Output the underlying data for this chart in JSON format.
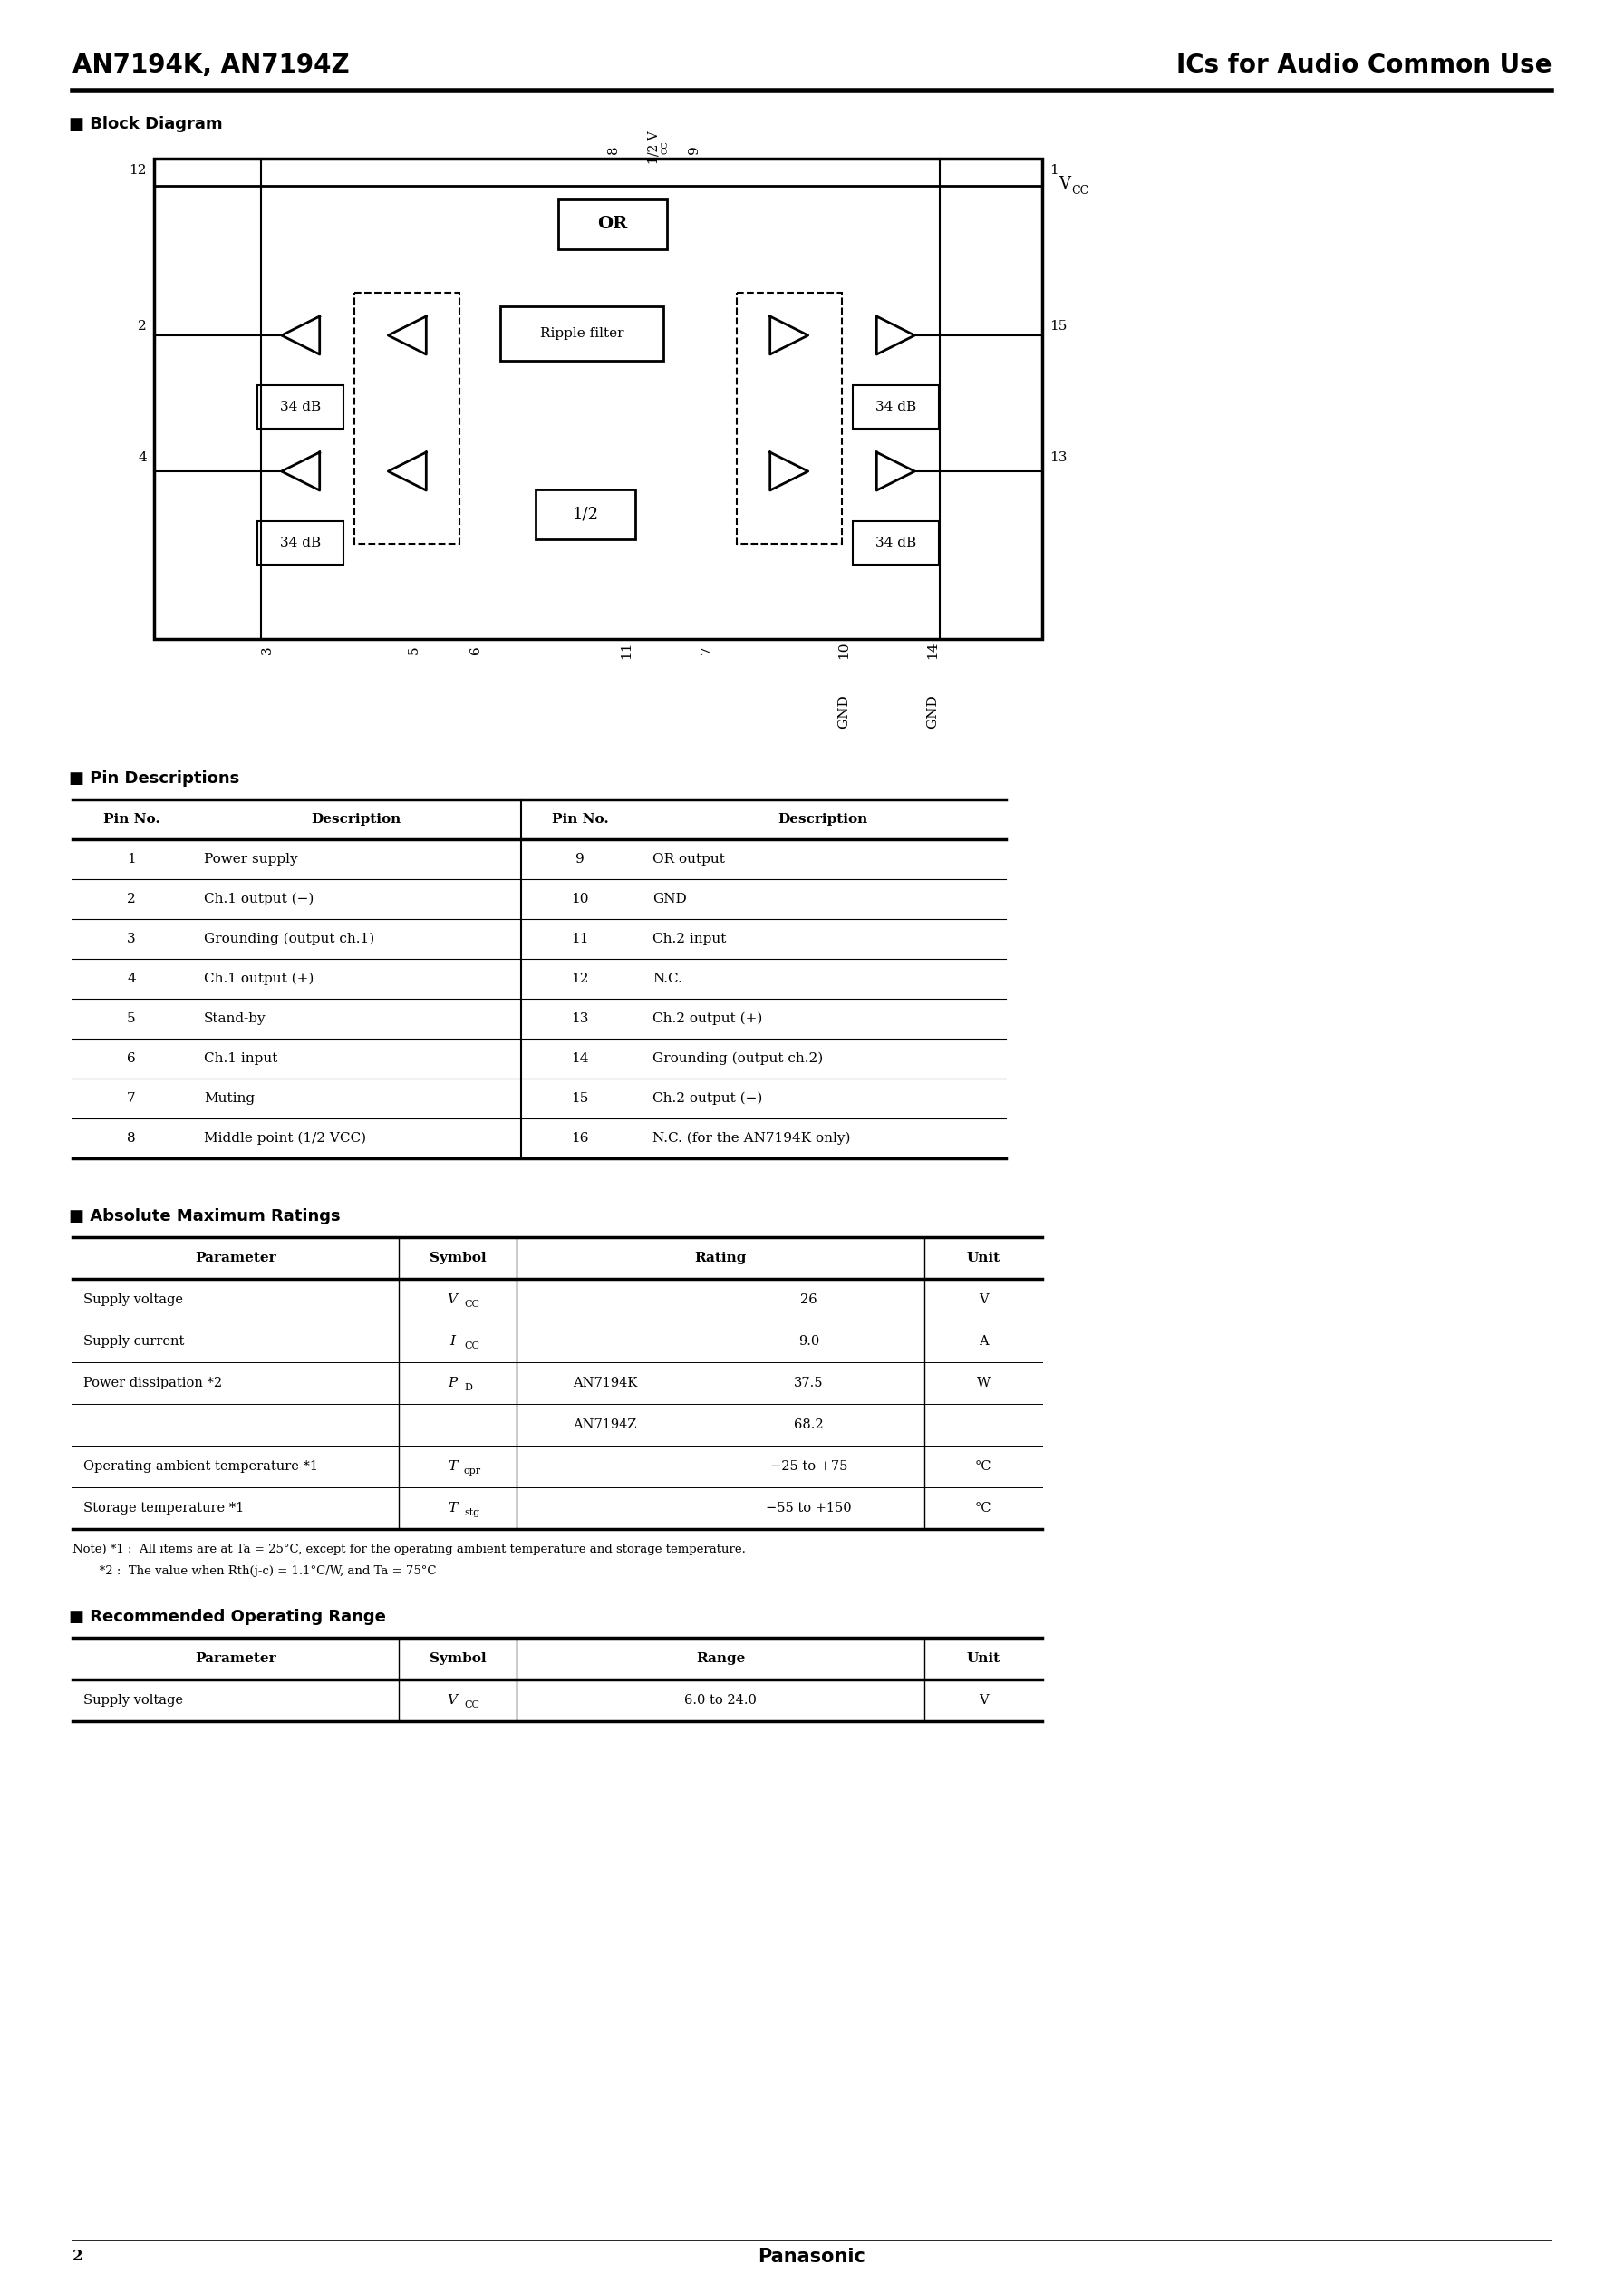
{
  "header_left": "AN7194K, AN7194Z",
  "header_right": "ICs for Audio Common Use",
  "section1": "Block Diagram",
  "section2": "Pin Descriptions",
  "section3": "Absolute Maximum Ratings",
  "section4": "Recommended Operating Range",
  "pin_table_headers": [
    "Pin No.",
    "Description",
    "Pin No.",
    "Description"
  ],
  "pin_data": [
    [
      "1",
      "Power supply",
      "9",
      "OR output"
    ],
    [
      "2",
      "Ch.1 output (−)",
      "10",
      "GND"
    ],
    [
      "3",
      "Grounding (output ch.1)",
      "11",
      "Ch.2 input"
    ],
    [
      "4",
      "Ch.1 output (+)",
      "12",
      "N.C."
    ],
    [
      "5",
      "Stand-by",
      "13",
      "Ch.2 output (+)"
    ],
    [
      "6",
      "Ch.1 input",
      "14",
      "Grounding (output ch.2)"
    ],
    [
      "7",
      "Muting",
      "15",
      "Ch.2 output (−)"
    ],
    [
      "8",
      "Middle point (1/2 VCC)",
      "16",
      "N.C. (for the AN7194K only)"
    ]
  ],
  "abs_max_rows": [
    [
      "Supply voltage",
      "V",
      "CC",
      "",
      "26",
      "V"
    ],
    [
      "Supply current",
      "I",
      "CC",
      "",
      "9.0",
      "A"
    ],
    [
      "Power dissipation *2",
      "P",
      "D",
      "AN7194K",
      "37.5",
      "W"
    ],
    [
      "",
      "",
      "",
      "AN7194Z",
      "68.2",
      ""
    ],
    [
      "Operating ambient temperature *1",
      "T",
      "opr",
      "",
      "−25 to +75",
      "°C"
    ],
    [
      "Storage temperature *1",
      "T",
      "stg",
      "",
      "−55 to +150",
      "°C"
    ]
  ],
  "rec_op_headers": [
    "Parameter",
    "Symbol",
    "Range",
    "Unit"
  ],
  "rec_op_data": [
    [
      "Supply voltage",
      "V",
      "CC",
      "6.0 to 24.0",
      "V"
    ]
  ],
  "footer": "Panasonic",
  "page_num": "2"
}
